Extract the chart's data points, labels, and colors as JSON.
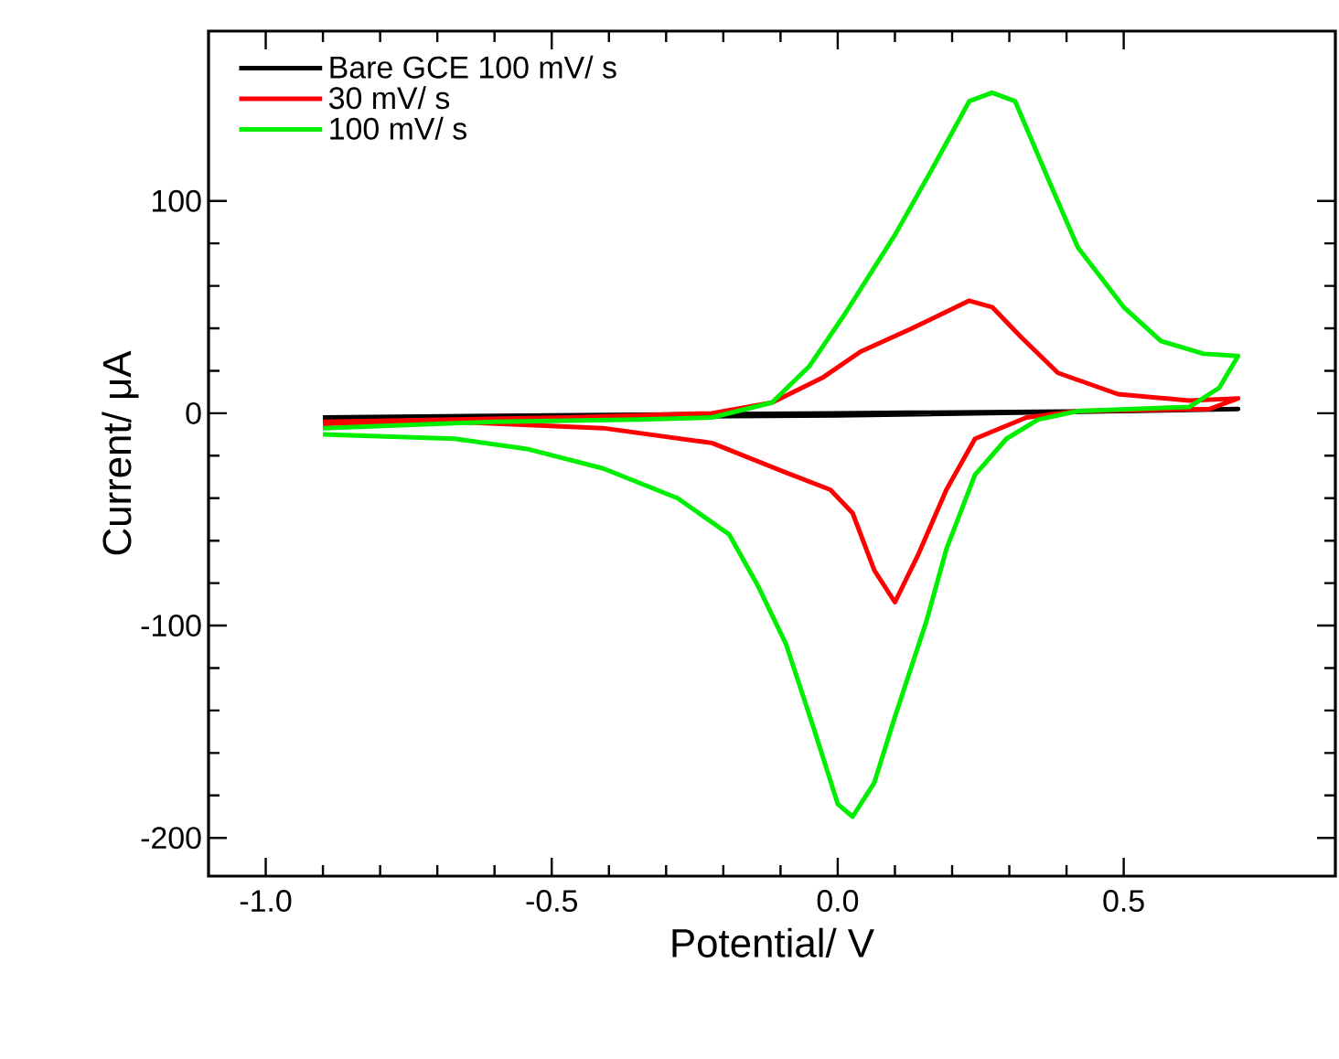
{
  "chart_data": {
    "type": "line",
    "xlabel": "Potential/ V",
    "ylabel": "Current/ μA",
    "xlim": [
      -1.1,
      0.87
    ],
    "ylim": [
      -218,
      180
    ],
    "xticks": [
      {
        "value": -1.0,
        "label": "-1.0"
      },
      {
        "value": -0.5,
        "label": "-0.5"
      },
      {
        "value": 0.0,
        "label": "0.0"
      },
      {
        "value": 0.5,
        "label": "0.5"
      }
    ],
    "yticks": [
      -200,
      -100,
      0,
      100
    ],
    "legend": "top left",
    "series": [
      {
        "name": "Bare GCE 100 mV/ s",
        "color": "#000000",
        "x": [
          -0.9,
          -0.5,
          0.0,
          0.5,
          0.7,
          0.5,
          0.0,
          -0.5,
          -0.9
        ],
        "values": [
          -3,
          -2,
          -1,
          1,
          2,
          1,
          0,
          -1,
          -2
        ]
      },
      {
        "name": "30 mV/ s",
        "color": "#ff0000",
        "x": [
          -0.9,
          -0.47,
          -0.22,
          -0.115,
          -0.025,
          0.04,
          0.13,
          0.23,
          0.27,
          0.32,
          0.385,
          0.49,
          0.615,
          0.7,
          0.65,
          0.42,
          0.33,
          0.24,
          0.19,
          0.14,
          0.1,
          0.064,
          0.026,
          -0.013,
          -0.09,
          -0.22,
          -0.41,
          -0.67,
          -0.9
        ],
        "values": [
          -4,
          -2,
          0,
          5,
          17,
          29,
          40,
          53,
          50,
          36,
          19,
          9,
          6,
          7,
          2,
          1,
          -2,
          -12,
          -36,
          -67,
          -89,
          -74,
          -47,
          -36,
          -28,
          -14,
          -7,
          -4,
          -5
        ]
      },
      {
        "name": "100 mV/ s",
        "color": "#00ee00",
        "x": [
          -0.9,
          -0.6,
          -0.35,
          -0.22,
          -0.115,
          -0.05,
          0.013,
          0.1,
          0.167,
          0.23,
          0.27,
          0.31,
          0.37,
          0.42,
          0.5,
          0.565,
          0.64,
          0.7,
          0.667,
          0.615,
          0.42,
          0.35,
          0.295,
          0.24,
          0.19,
          0.155,
          0.1,
          0.064,
          0.026,
          0.0,
          -0.04,
          -0.09,
          -0.14,
          -0.19,
          -0.28,
          -0.41,
          -0.54,
          -0.67,
          -0.9
        ],
        "values": [
          -7,
          -4,
          -3,
          -2,
          5,
          22,
          47,
          84,
          116,
          147,
          151,
          147,
          109,
          78,
          50,
          34,
          28,
          27,
          12,
          3,
          1,
          -3,
          -12,
          -29,
          -64,
          -98,
          -143,
          -174,
          -190,
          -184,
          -150,
          -109,
          -81,
          -57,
          -40,
          -26,
          -17,
          -12,
          -10
        ]
      }
    ]
  }
}
